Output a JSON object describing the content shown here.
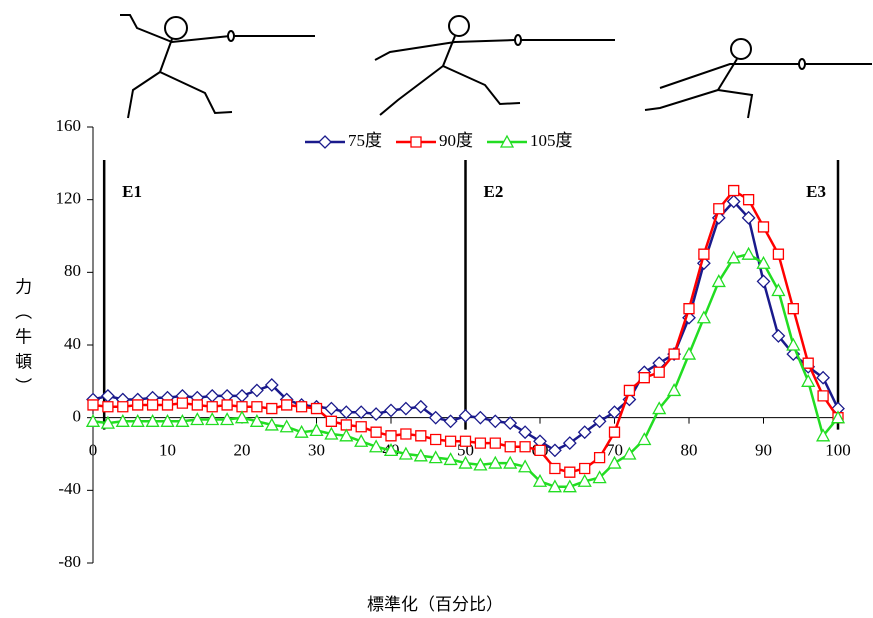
{
  "chart_data": {
    "type": "line",
    "x_label": "標準化（百分比）",
    "y_label": "力（牛頓）",
    "x": [
      0,
      2,
      4,
      6,
      8,
      10,
      12,
      14,
      16,
      18,
      20,
      22,
      24,
      26,
      28,
      30,
      32,
      34,
      36,
      38,
      40,
      42,
      44,
      46,
      48,
      50,
      52,
      54,
      56,
      58,
      60,
      62,
      64,
      66,
      68,
      70,
      72,
      74,
      76,
      78,
      80,
      82,
      84,
      86,
      88,
      90,
      92,
      94,
      96,
      98,
      100
    ],
    "series": [
      {
        "name": "75度",
        "color": "#1a1a8c",
        "marker": "diamond",
        "values": [
          10,
          12,
          10,
          10,
          11,
          11,
          12,
          11,
          12,
          12,
          12,
          15,
          18,
          10,
          7,
          6,
          5,
          3,
          3,
          2,
          4,
          5,
          6,
          0,
          -2,
          1,
          0,
          -2,
          -3,
          -8,
          -13,
          -18,
          -14,
          -8,
          -2,
          3,
          10,
          25,
          30,
          35,
          55,
          85,
          110,
          119,
          110,
          75,
          45,
          35,
          28,
          22,
          5
        ]
      },
      {
        "name": "90度",
        "color": "#ff0000",
        "marker": "square",
        "values": [
          7,
          6,
          6,
          7,
          7,
          7,
          8,
          7,
          6,
          7,
          6,
          6,
          5,
          7,
          6,
          5,
          -2,
          -4,
          -5,
          -8,
          -10,
          -9,
          -10,
          -12,
          -13,
          -13,
          -14,
          -14,
          -16,
          -16,
          -18,
          -28,
          -30,
          -28,
          -22,
          -8,
          15,
          22,
          25,
          35,
          60,
          90,
          115,
          125,
          120,
          105,
          90,
          60,
          30,
          12,
          0
        ]
      },
      {
        "name": "105度",
        "color": "#22dd22",
        "marker": "triangle",
        "values": [
          -2,
          -3,
          -2,
          -2,
          -2,
          -2,
          -2,
          -1,
          -1,
          -1,
          0,
          -2,
          -4,
          -5,
          -8,
          -7,
          -9,
          -10,
          -13,
          -16,
          -18,
          -20,
          -21,
          -22,
          -23,
          -25,
          -26,
          -25,
          -25,
          -27,
          -35,
          -38,
          -38,
          -35,
          -33,
          -25,
          -20,
          -12,
          5,
          15,
          35,
          55,
          75,
          88,
          90,
          85,
          70,
          40,
          20,
          -10,
          0
        ]
      }
    ],
    "events": [
      {
        "label": "E1",
        "x": 1.5
      },
      {
        "label": "E2",
        "x": 50
      },
      {
        "label": "E3",
        "x": 100
      }
    ],
    "xlim": [
      0,
      100
    ],
    "xticks": [
      0,
      10,
      20,
      30,
      40,
      50,
      60,
      70,
      80,
      90,
      100
    ],
    "ylim": [
      -80,
      160
    ],
    "yticks": [
      -80,
      -40,
      0,
      40,
      80,
      120,
      160
    ],
    "grid": false,
    "legend": "top"
  }
}
